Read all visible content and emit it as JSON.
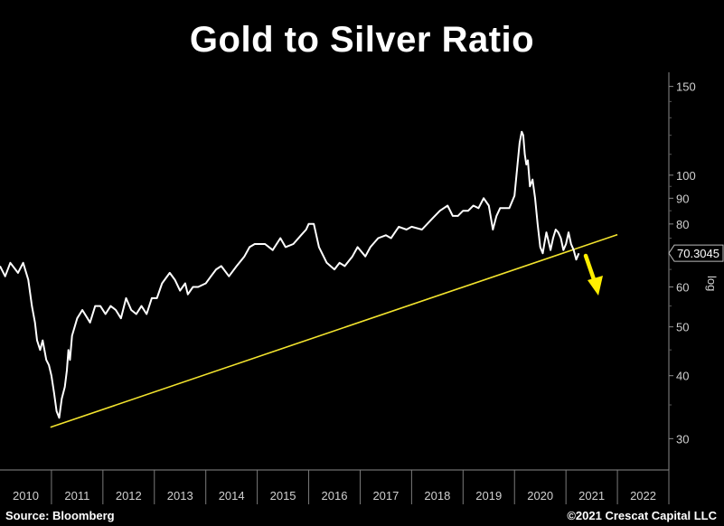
{
  "title": "Gold to Silver Ratio",
  "footer": {
    "source": "Source: Bloomberg",
    "copyright": "©2021 Crescat Capital LLC"
  },
  "colors": {
    "background": "#000000",
    "series": "#ffffff",
    "trendline": "#f2e32e",
    "arrow": "#ffee00"
  },
  "chart_data": {
    "type": "line",
    "title": "Gold to Silver Ratio",
    "xlabel": "",
    "ylabel": "",
    "y_scale": "log",
    "ylim": [
      26,
      160
    ],
    "xlim": [
      2010.0,
      2023.0
    ],
    "y_ticks": [
      30,
      40,
      50,
      60,
      70,
      80,
      90,
      100,
      150
    ],
    "y_tick_labels": [
      "30",
      "40",
      "50",
      "60",
      "",
      "80",
      "90",
      "100",
      "150"
    ],
    "x_ticks": [
      "2010",
      "2011",
      "2012",
      "2013",
      "2014",
      "2015",
      "2016",
      "2017",
      "2018",
      "2019",
      "2020",
      "2021",
      "2022"
    ],
    "last_value_label": "70.3045",
    "axis_side_label": "log",
    "series": [
      {
        "x": [
          2010.0,
          2010.1,
          2010.2,
          2010.35,
          2010.45,
          2010.55,
          2010.62,
          2010.68,
          2010.72,
          2010.78,
          2010.83,
          2010.9,
          2010.95,
          2011.0,
          2011.05,
          2011.1,
          2011.15,
          2011.2,
          2011.26,
          2011.3,
          2011.33,
          2011.36,
          2011.4,
          2011.5,
          2011.6,
          2011.7,
          2011.75,
          2011.85,
          2011.95,
          2012.05,
          2012.15,
          2012.25,
          2012.35,
          2012.45,
          2012.55,
          2012.65,
          2012.75,
          2012.85,
          2012.95,
          2013.05,
          2013.15,
          2013.3,
          2013.4,
          2013.5,
          2013.6,
          2013.65,
          2013.75,
          2013.85,
          2014.0,
          2014.1,
          2014.2,
          2014.3,
          2014.45,
          2014.6,
          2014.75,
          2014.85,
          2014.95,
          2015.05,
          2015.15,
          2015.3,
          2015.45,
          2015.55,
          2015.7,
          2015.85,
          2015.95,
          2016.0,
          2016.1,
          2016.2,
          2016.35,
          2016.5,
          2016.6,
          2016.7,
          2016.85,
          2016.95,
          2017.1,
          2017.2,
          2017.35,
          2017.5,
          2017.6,
          2017.75,
          2017.9,
          2018.0,
          2018.2,
          2018.4,
          2018.55,
          2018.7,
          2018.8,
          2018.9,
          2019.0,
          2019.1,
          2019.2,
          2019.3,
          2019.4,
          2019.5,
          2019.58,
          2019.65,
          2019.72,
          2019.8,
          2019.9,
          2020.0,
          2020.05,
          2020.1,
          2020.14,
          2020.17,
          2020.2,
          2020.23,
          2020.26,
          2020.3,
          2020.35,
          2020.4,
          2020.45,
          2020.5,
          2020.55,
          2020.58,
          2020.62,
          2020.66,
          2020.7,
          2020.75,
          2020.8,
          2020.85,
          2020.9,
          2020.95,
          2021.0,
          2021.05,
          2021.1,
          2021.15,
          2021.2,
          2021.25
        ],
        "y": [
          66,
          63,
          67,
          64,
          67,
          62,
          55,
          51,
          47,
          45,
          47,
          43,
          42,
          40,
          37,
          34,
          33,
          36,
          38,
          41,
          45,
          43,
          48,
          52,
          54,
          52,
          51,
          55,
          55,
          53,
          55,
          54,
          52,
          57,
          54,
          53,
          55,
          53,
          57,
          57,
          61,
          64,
          62,
          59,
          61,
          58,
          60,
          60,
          61,
          63,
          65,
          66,
          63,
          66,
          69,
          72,
          73,
          73,
          73,
          71,
          75,
          72,
          73,
          76,
          78,
          80,
          80,
          72,
          67,
          65,
          67,
          66,
          69,
          72,
          69,
          72,
          75,
          76,
          75,
          79,
          78,
          79,
          78,
          82,
          85,
          87,
          83,
          83,
          85,
          85,
          87,
          86,
          90,
          87,
          78,
          83,
          86,
          86,
          86,
          91,
          103,
          116,
          122,
          120,
          110,
          105,
          107,
          95,
          98,
          90,
          80,
          72,
          70,
          73,
          77,
          74,
          71,
          75,
          78,
          77,
          75,
          71,
          73,
          77,
          73,
          71,
          68,
          70
        ]
      }
    ],
    "trendline": {
      "x": [
        2010.98,
        2022.0
      ],
      "y": [
        31.6,
        76.2
      ]
    }
  }
}
